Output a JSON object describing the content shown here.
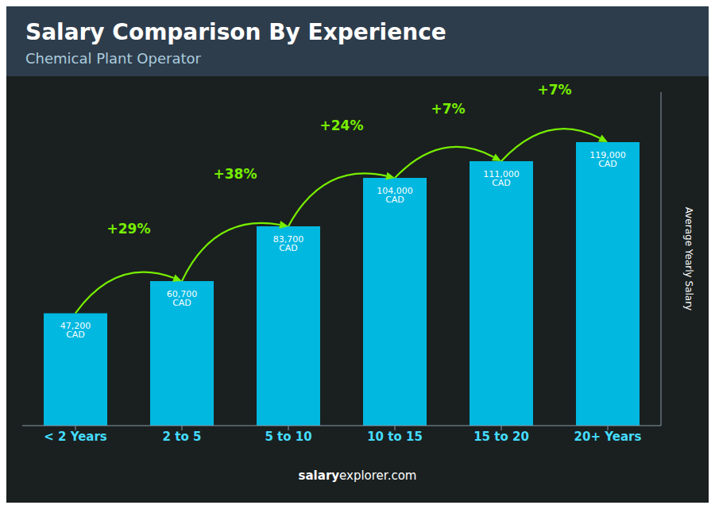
{
  "chart_data": {
    "type": "bar",
    "title": "Salary Comparison By Experience",
    "subtitle": "Chemical Plant Operator",
    "categories": [
      "< 2 Years",
      "2 to 5",
      "5 to 10",
      "10 to 15",
      "15 to 20",
      "20+ Years"
    ],
    "values": [
      47200,
      60700,
      83700,
      104000,
      111000,
      119000
    ],
    "value_labels": [
      "47,200 CAD",
      "60,700 CAD",
      "83,700 CAD",
      "104,000 CAD",
      "111,000 CAD",
      "119,000 CAD"
    ],
    "data_labels": true,
    "color": "#00b8e0",
    "ylabel": "Average Yearly Salary",
    "ylim": [
      0,
      140000
    ],
    "grid": false,
    "tick_labels": "x",
    "annotations": [
      {
        "label": "+29%",
        "color": "#77ee00"
      },
      {
        "label": "+38%",
        "color": "#77ee00"
      },
      {
        "label": "+24%",
        "color": "#77ee00"
      },
      {
        "label": "+7%",
        "color": "#77ee00"
      },
      {
        "label": "+7%",
        "color": "#77ee00"
      }
    ],
    "footer": [
      "salary",
      "explorer.com"
    ]
  }
}
